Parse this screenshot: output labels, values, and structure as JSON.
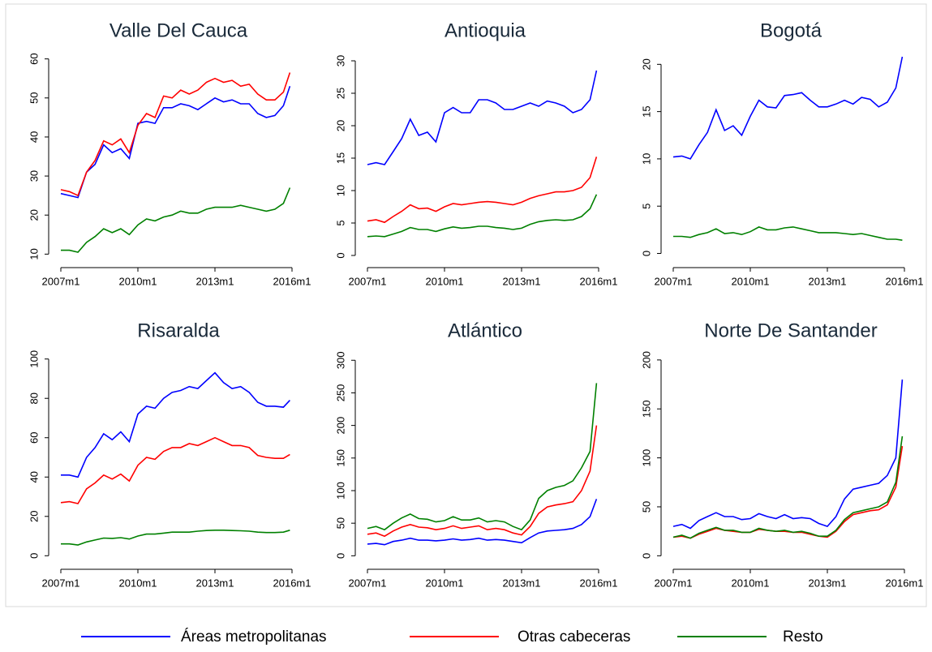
{
  "chart_data": [
    {
      "type": "line",
      "title": "Valle Del Cauca",
      "x": [
        "2007m1",
        "2007m5",
        "2007m9",
        "2008m1",
        "2008m5",
        "2008m9",
        "2009m1",
        "2009m5",
        "2009m9",
        "2010m1",
        "2010m5",
        "2010m9",
        "2011m1",
        "2011m5",
        "2011m9",
        "2012m1",
        "2012m5",
        "2012m9",
        "2013m1",
        "2013m5",
        "2013m9",
        "2014m1",
        "2014m5",
        "2014m9",
        "2015m1",
        "2015m5",
        "2015m9",
        "2015m12"
      ],
      "xticks": [
        "2007m1",
        "2010m1",
        "2013m1",
        "2016m1"
      ],
      "ylim": [
        8,
        62
      ],
      "yticks": [
        10,
        20,
        30,
        40,
        50,
        60
      ],
      "series": [
        {
          "name": "Áreas metropolitanas",
          "color": "#0000ff",
          "values": [
            25.5,
            25,
            24.5,
            31,
            33,
            38,
            36,
            37,
            34.5,
            43.5,
            44,
            43.5,
            47.5,
            47.5,
            48.5,
            48,
            47,
            48.5,
            50,
            49,
            49.5,
            48.5,
            48.5,
            46,
            45,
            45.5,
            48,
            53
          ]
        },
        {
          "name": "Otras cabeceras",
          "color": "#ff0000",
          "values": [
            26.5,
            26,
            25,
            31,
            34,
            39,
            38,
            39.5,
            36,
            43,
            46,
            45,
            50.5,
            50,
            52,
            51,
            52,
            54,
            55,
            54,
            54.5,
            53,
            53.5,
            51,
            49.5,
            49.5,
            51.5,
            56.5
          ]
        },
        {
          "name": "Resto",
          "color": "#008000",
          "values": [
            11,
            11,
            10.5,
            13,
            14.5,
            16.5,
            15.5,
            16.5,
            15,
            17.5,
            19,
            18.5,
            19.5,
            20,
            21,
            20.5,
            20.5,
            21.5,
            22,
            22,
            22,
            22.5,
            22,
            21.5,
            21,
            21.5,
            23,
            27
          ]
        }
      ]
    },
    {
      "type": "line",
      "title": "Antioquia",
      "x": [
        "2007m1",
        "2007m5",
        "2007m9",
        "2008m1",
        "2008m5",
        "2008m9",
        "2009m1",
        "2009m5",
        "2009m9",
        "2010m1",
        "2010m5",
        "2010m9",
        "2011m1",
        "2011m5",
        "2011m9",
        "2012m1",
        "2012m5",
        "2012m9",
        "2013m1",
        "2013m5",
        "2013m9",
        "2014m1",
        "2014m5",
        "2014m9",
        "2015m1",
        "2015m5",
        "2015m9",
        "2015m12"
      ],
      "xticks": [
        "2007m1",
        "2010m1",
        "2013m1",
        "2016m1"
      ],
      "ylim": [
        -1,
        31.5
      ],
      "yticks": [
        0,
        5,
        10,
        15,
        20,
        25,
        30
      ],
      "series": [
        {
          "name": "Áreas metropolitanas",
          "color": "#0000ff",
          "values": [
            14,
            14.3,
            14,
            16,
            18,
            21,
            18.5,
            19,
            17.5,
            22,
            22.8,
            22,
            22,
            24,
            24,
            23.5,
            22.5,
            22.5,
            23,
            23.5,
            23,
            23.8,
            23.5,
            23,
            22,
            22.5,
            24,
            28.5
          ]
        },
        {
          "name": "Otras cabeceras",
          "color": "#ff0000",
          "values": [
            5.3,
            5.5,
            5.1,
            6,
            6.8,
            7.8,
            7.2,
            7.3,
            6.8,
            7.5,
            8,
            7.8,
            8,
            8.2,
            8.3,
            8.2,
            8,
            7.8,
            8.2,
            8.8,
            9.2,
            9.5,
            9.8,
            9.8,
            10,
            10.5,
            12,
            15.2
          ]
        },
        {
          "name": "Resto",
          "color": "#008000",
          "values": [
            2.9,
            3,
            2.9,
            3.3,
            3.7,
            4.3,
            4,
            4,
            3.7,
            4.1,
            4.4,
            4.2,
            4.3,
            4.5,
            4.5,
            4.3,
            4.2,
            4,
            4.2,
            4.8,
            5.2,
            5.4,
            5.5,
            5.4,
            5.5,
            6,
            7.2,
            9.4
          ]
        }
      ]
    },
    {
      "type": "line",
      "title": "Bogotá",
      "x": [
        "2007m1",
        "2007m5",
        "2007m9",
        "2008m1",
        "2008m5",
        "2008m9",
        "2009m1",
        "2009m5",
        "2009m9",
        "2010m1",
        "2010m5",
        "2010m9",
        "2011m1",
        "2011m5",
        "2011m9",
        "2012m1",
        "2012m5",
        "2012m9",
        "2013m1",
        "2013m5",
        "2013m9",
        "2014m1",
        "2014m5",
        "2014m9",
        "2015m1",
        "2015m5",
        "2015m9",
        "2015m12"
      ],
      "xticks": [
        "2007m1",
        "2010m1",
        "2013m1",
        "2016m1"
      ],
      "ylim": [
        -0.9,
        21.4
      ],
      "yticks": [
        0,
        5,
        10,
        15,
        20
      ],
      "series": [
        {
          "name": "Áreas metropolitanas",
          "color": "#0000ff",
          "values": [
            10.2,
            10.3,
            10,
            11.5,
            12.8,
            15.2,
            13,
            13.5,
            12.5,
            14.5,
            16.2,
            15.5,
            15.4,
            16.7,
            16.8,
            17,
            16.2,
            15.5,
            15.5,
            15.8,
            16.2,
            15.8,
            16.5,
            16.3,
            15.5,
            16,
            17.5,
            20.8
          ]
        },
        {
          "name": "Resto",
          "color": "#008000",
          "values": [
            1.8,
            1.8,
            1.7,
            2,
            2.2,
            2.6,
            2.1,
            2.2,
            2,
            2.3,
            2.8,
            2.5,
            2.5,
            2.7,
            2.8,
            2.6,
            2.4,
            2.2,
            2.2,
            2.2,
            2.1,
            2,
            2.1,
            1.9,
            1.7,
            1.5,
            1.5,
            1.4
          ]
        }
      ]
    },
    {
      "type": "line",
      "title": "Risaralda",
      "x": [
        "2007m1",
        "2007m5",
        "2007m9",
        "2008m1",
        "2008m5",
        "2008m9",
        "2009m1",
        "2009m5",
        "2009m9",
        "2010m1",
        "2010m5",
        "2010m9",
        "2011m1",
        "2011m5",
        "2011m9",
        "2012m1",
        "2012m5",
        "2012m9",
        "2013m1",
        "2013m5",
        "2013m9",
        "2014m1",
        "2014m5",
        "2014m9",
        "2015m1",
        "2015m5",
        "2015m9",
        "2015m12"
      ],
      "xticks": [
        "2007m1",
        "2010m1",
        "2013m1",
        "2016m1"
      ],
      "ylim": [
        -4,
        104
      ],
      "yticks": [
        0,
        20,
        40,
        60,
        80,
        100
      ],
      "series": [
        {
          "name": "Áreas metropolitanas",
          "color": "#0000ff",
          "values": [
            41,
            41,
            40,
            50,
            55,
            62,
            59,
            63,
            58,
            72,
            76,
            75,
            80,
            83,
            84,
            86,
            85,
            89,
            93,
            88,
            85,
            86,
            83,
            78,
            76,
            76,
            75.5,
            79
          ]
        },
        {
          "name": "Otras cabeceras",
          "color": "#ff0000",
          "values": [
            27,
            27.5,
            26.5,
            34,
            37,
            41,
            39,
            41.5,
            38,
            46,
            50,
            49,
            53,
            55,
            55,
            57,
            56,
            58,
            60,
            58,
            56,
            56,
            55,
            51,
            50,
            49.5,
            49.5,
            51.5
          ]
        },
        {
          "name": "Resto",
          "color": "#008000",
          "values": [
            6,
            6,
            5.5,
            7,
            8,
            9,
            8.8,
            9.2,
            8.5,
            10,
            11,
            11,
            11.5,
            12,
            12,
            12,
            12.5,
            12.8,
            13,
            13,
            12.8,
            12.7,
            12.5,
            12,
            11.8,
            11.8,
            12,
            13
          ]
        }
      ]
    },
    {
      "type": "line",
      "title": "Atlántico",
      "x": [
        "2007m1",
        "2007m5",
        "2007m9",
        "2008m1",
        "2008m5",
        "2008m9",
        "2009m1",
        "2009m5",
        "2009m9",
        "2010m1",
        "2010m5",
        "2010m9",
        "2011m1",
        "2011m5",
        "2011m9",
        "2012m1",
        "2012m5",
        "2012m9",
        "2013m1",
        "2013m5",
        "2013m9",
        "2014m1",
        "2014m5",
        "2014m9",
        "2015m1",
        "2015m5",
        "2015m9",
        "2015m12"
      ],
      "xticks": [
        "2007m1",
        "2010m1",
        "2013m1",
        "2016m1"
      ],
      "ylim": [
        -12,
        314
      ],
      "yticks": [
        0,
        50,
        100,
        150,
        200,
        250,
        300
      ],
      "series": [
        {
          "name": "Áreas metropolitanas",
          "color": "#0000ff",
          "values": [
            18,
            19,
            17,
            22,
            24,
            27,
            24,
            24,
            23,
            24,
            26,
            24,
            25,
            27,
            24,
            25,
            24,
            22,
            20,
            28,
            35,
            38,
            39,
            40,
            42,
            48,
            60,
            87
          ]
        },
        {
          "name": "Otras cabeceras",
          "color": "#ff0000",
          "values": [
            33,
            35,
            30,
            38,
            44,
            48,
            44,
            43,
            40,
            42,
            46,
            42,
            44,
            46,
            40,
            42,
            40,
            35,
            32,
            45,
            65,
            75,
            78,
            80,
            83,
            100,
            130,
            200
          ]
        },
        {
          "name": "Resto",
          "color": "#008000",
          "values": [
            42,
            45,
            40,
            50,
            58,
            64,
            57,
            56,
            52,
            54,
            60,
            55,
            55,
            58,
            52,
            54,
            52,
            45,
            40,
            55,
            88,
            100,
            105,
            108,
            115,
            135,
            160,
            265
          ]
        }
      ]
    },
    {
      "type": "line",
      "title": "Norte De Santander",
      "x": [
        "2007m1",
        "2007m5",
        "2007m9",
        "2008m1",
        "2008m5",
        "2008m9",
        "2009m1",
        "2009m5",
        "2009m9",
        "2010m1",
        "2010m5",
        "2010m9",
        "2011m1",
        "2011m5",
        "2011m9",
        "2012m1",
        "2012m5",
        "2012m9",
        "2013m1",
        "2013m5",
        "2013m9",
        "2014m1",
        "2014m5",
        "2014m9",
        "2015m1",
        "2015m5",
        "2015m9",
        "2015m12"
      ],
      "xticks": [
        "2007m1",
        "2010m1",
        "2013m1",
        "2016m1"
      ],
      "ylim": [
        -8,
        209
      ],
      "yticks": [
        0,
        50,
        100,
        150,
        200
      ],
      "series": [
        {
          "name": "Áreas metropolitanas",
          "color": "#0000ff",
          "values": [
            30,
            32,
            28,
            36,
            40,
            44,
            40,
            40,
            37,
            38,
            43,
            40,
            38,
            42,
            38,
            39,
            38,
            33,
            30,
            40,
            58,
            68,
            70,
            72,
            74,
            82,
            100,
            180
          ]
        },
        {
          "name": "Otras cabeceras",
          "color": "#ff0000",
          "values": [
            19,
            20,
            18,
            22,
            25,
            28,
            26,
            25,
            24,
            24,
            27,
            26,
            25,
            25,
            24,
            24,
            22,
            20,
            19,
            25,
            35,
            42,
            44,
            46,
            47,
            52,
            70,
            112
          ]
        },
        {
          "name": "Resto",
          "color": "#008000",
          "values": [
            19,
            21,
            18,
            23,
            26,
            29,
            26,
            26,
            24,
            24,
            28,
            26,
            25,
            26,
            24,
            25,
            23,
            20,
            20,
            26,
            37,
            44,
            46,
            48,
            50,
            55,
            75,
            122
          ]
        }
      ]
    }
  ]
}
